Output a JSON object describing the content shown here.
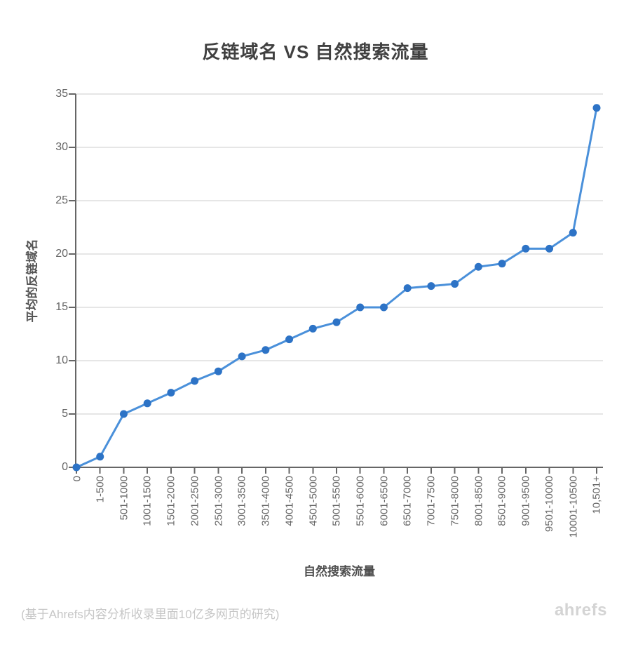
{
  "chart_data": {
    "type": "line",
    "title": "反链域名 VS 自然搜索流量",
    "xlabel": "自然搜索流量",
    "ylabel": "平均的反链域名",
    "categories": [
      "0",
      "1-500",
      "501-1000",
      "1001-1500",
      "1501-2000",
      "2001-2500",
      "2501-3000",
      "3001-3500",
      "3501-4000",
      "4001-4500",
      "4501-5000",
      "5001-5500",
      "5501-6000",
      "6001-6500",
      "6501-7000",
      "7001-7500",
      "7501-8000",
      "8001-8500",
      "8501-9000",
      "9001-9500",
      "9501-10000",
      "10001-10500",
      "10,501+"
    ],
    "values": [
      0,
      1,
      5,
      6,
      7,
      8.1,
      9,
      10.4,
      11,
      12,
      13,
      13.6,
      15,
      15,
      16.8,
      17,
      17.2,
      18.8,
      19.1,
      20.5,
      20.5,
      22,
      33.7
    ],
    "ylim": [
      0,
      35
    ],
    "ytick_step": 5,
    "grid": "horizontal",
    "legend": "none",
    "colors": {
      "line": "#4a90da",
      "marker": "#2d73c6",
      "axis": "#666666",
      "grid": "#e6e6e6"
    }
  },
  "footer": {
    "note": "(基于Ahrefs内容分析收录里面10亿多网页的研究)",
    "logo": "ahrefs"
  }
}
